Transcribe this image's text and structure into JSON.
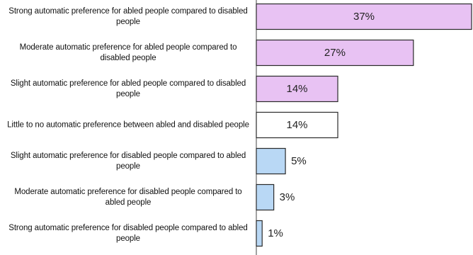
{
  "chart_data": {
    "type": "bar",
    "orientation": "horizontal",
    "categories": [
      "Strong automatic preference for abled people compared to disabled people",
      "Moderate automatic preference for abled people compared to disabled people",
      "Slight automatic preference for abled people compared to disabled people",
      "Little to no automatic preference between abled and disabled people",
      "Slight automatic preference for disabled people compared to abled people",
      "Moderate automatic preference for disabled people compared to abled people",
      "Strong automatic preference for disabled people compared to abled people"
    ],
    "values": [
      37,
      27,
      14,
      14,
      5,
      3,
      1
    ],
    "value_labels": [
      "37%",
      "27%",
      "14%",
      "14%",
      "5%",
      "3%",
      "1%"
    ],
    "bar_colors": [
      "#e8c2f3",
      "#e8c2f3",
      "#e8c2f3",
      "#ffffff",
      "#b9d8f5",
      "#b9d8f5",
      "#b9d8f5"
    ],
    "bar_stroke": "#2a2a2a",
    "axis_color": "#444444",
    "xlim": [
      0,
      37
    ],
    "grid": false,
    "legend": "none",
    "title": "",
    "xlabel": "",
    "ylabel": ""
  }
}
